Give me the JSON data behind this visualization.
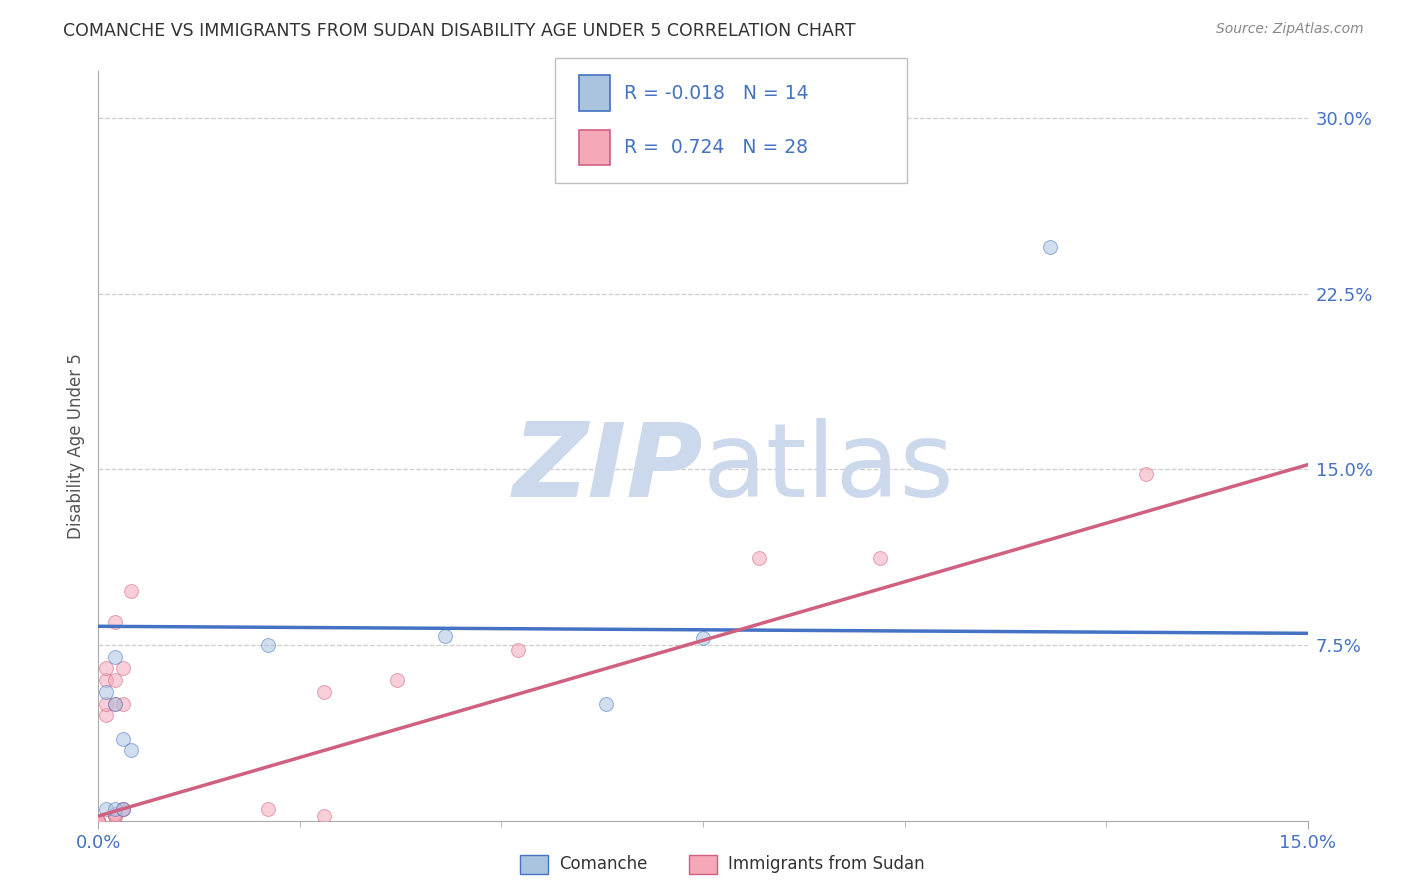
{
  "title": "COMANCHE VS IMMIGRANTS FROM SUDAN DISABILITY AGE UNDER 5 CORRELATION CHART",
  "source": "Source: ZipAtlas.com",
  "ylabel": "Disability Age Under 5",
  "xlim": [
    0.0,
    0.15
  ],
  "ylim": [
    0.0,
    0.32
  ],
  "ytick_labels": [
    "7.5%",
    "15.0%",
    "22.5%",
    "30.0%"
  ],
  "ytick_positions": [
    0.075,
    0.15,
    0.225,
    0.3
  ],
  "grid_color": "#cccccc",
  "background_color": "#ffffff",
  "comanche_x": [
    0.001,
    0.001,
    0.002,
    0.002,
    0.002,
    0.003,
    0.003,
    0.004,
    0.021,
    0.043,
    0.063,
    0.075,
    0.095,
    0.118
  ],
  "comanche_y": [
    0.005,
    0.055,
    0.05,
    0.005,
    0.07,
    0.035,
    0.005,
    0.03,
    0.075,
    0.079,
    0.05,
    0.078,
    0.278,
    0.245
  ],
  "sudan_x": [
    0.0,
    0.0,
    0.0,
    0.0,
    0.0,
    0.001,
    0.001,
    0.001,
    0.001,
    0.002,
    0.002,
    0.002,
    0.002,
    0.002,
    0.002,
    0.003,
    0.003,
    0.003,
    0.003,
    0.004,
    0.021,
    0.028,
    0.028,
    0.037,
    0.052,
    0.082,
    0.097,
    0.13
  ],
  "sudan_y": [
    0.0,
    0.0,
    0.0,
    0.0,
    0.0,
    0.045,
    0.05,
    0.06,
    0.065,
    0.002,
    0.002,
    0.003,
    0.05,
    0.06,
    0.085,
    0.005,
    0.05,
    0.065,
    0.005,
    0.098,
    0.005,
    0.002,
    0.055,
    0.06,
    0.073,
    0.112,
    0.112,
    0.148
  ],
  "comanche_color": "#aac4e0",
  "sudan_color": "#f4a8b8",
  "comanche_line_color": "#4472c4",
  "sudan_line_color": "#d06080",
  "legend_comanche_R": "-0.018",
  "legend_comanche_N": "14",
  "legend_sudan_R": "0.724",
  "legend_sudan_N": "28",
  "watermark_color": "#ccd8ec",
  "marker_size": 100,
  "marker_alpha": 0.55,
  "comanche_line_x0": 0.0,
  "comanche_line_x1": 0.15,
  "comanche_line_y0": 0.083,
  "comanche_line_y1": 0.08,
  "sudan_line_x0": 0.0,
  "sudan_line_x1": 0.15,
  "sudan_line_y0": 0.002,
  "sudan_line_y1": 0.152
}
